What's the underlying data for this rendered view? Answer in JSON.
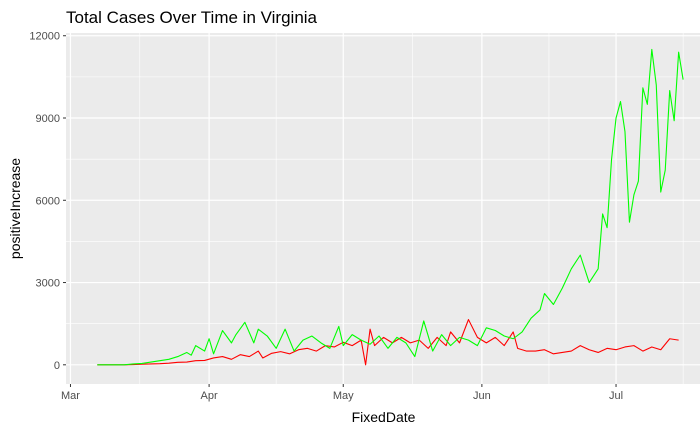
{
  "chart_data": {
    "type": "line",
    "title": "Total Cases Over Time in Virginia",
    "xlabel": "FixedDate",
    "ylabel": "positiveIncrease",
    "xlim": [
      "2020-02-29",
      "2020-07-20"
    ],
    "ylim": [
      -700,
      12100
    ],
    "x_ticks": [
      {
        "date": "2020-03-01",
        "label": "Mar"
      },
      {
        "date": "2020-04-01",
        "label": "Apr"
      },
      {
        "date": "2020-05-01",
        "label": "May"
      },
      {
        "date": "2020-06-01",
        "label": "Jun"
      },
      {
        "date": "2020-07-01",
        "label": "Jul"
      }
    ],
    "y_ticks": [
      {
        "value": 0,
        "label": "0"
      },
      {
        "value": 3000,
        "label": "3000"
      },
      {
        "value": 6000,
        "label": "6000"
      },
      {
        "value": 9000,
        "label": "9000"
      },
      {
        "value": 12000,
        "label": "12000"
      }
    ],
    "grid": true,
    "legend": "none",
    "colors": {
      "panel": "#ebebeb",
      "grid": "#ffffff",
      "red_series": "#ff0000",
      "green_series": "#00ff00"
    },
    "series": [
      {
        "color": "#ff0000",
        "points": [
          [
            "2020-03-07",
            0
          ],
          [
            "2020-03-10",
            0
          ],
          [
            "2020-03-13",
            0
          ],
          [
            "2020-03-15",
            10
          ],
          [
            "2020-03-17",
            20
          ],
          [
            "2020-03-19",
            30
          ],
          [
            "2020-03-21",
            40
          ],
          [
            "2020-03-23",
            60
          ],
          [
            "2020-03-25",
            90
          ],
          [
            "2020-03-27",
            100
          ],
          [
            "2020-03-29",
            150
          ],
          [
            "2020-03-31",
            160
          ],
          [
            "2020-04-02",
            250
          ],
          [
            "2020-04-04",
            300
          ],
          [
            "2020-04-06",
            200
          ],
          [
            "2020-04-08",
            370
          ],
          [
            "2020-04-10",
            300
          ],
          [
            "2020-04-12",
            500
          ],
          [
            "2020-04-13",
            250
          ],
          [
            "2020-04-15",
            420
          ],
          [
            "2020-04-17",
            480
          ],
          [
            "2020-04-19",
            400
          ],
          [
            "2020-04-21",
            550
          ],
          [
            "2020-04-23",
            600
          ],
          [
            "2020-04-25",
            500
          ],
          [
            "2020-04-27",
            700
          ],
          [
            "2020-04-29",
            650
          ],
          [
            "2020-05-01",
            820
          ],
          [
            "2020-05-03",
            700
          ],
          [
            "2020-05-05",
            900
          ],
          [
            "2020-05-06",
            0
          ],
          [
            "2020-05-07",
            1300
          ],
          [
            "2020-05-08",
            700
          ],
          [
            "2020-05-10",
            1000
          ],
          [
            "2020-05-12",
            800
          ],
          [
            "2020-05-14",
            1000
          ],
          [
            "2020-05-16",
            800
          ],
          [
            "2020-05-18",
            900
          ],
          [
            "2020-05-20",
            600
          ],
          [
            "2020-05-22",
            1000
          ],
          [
            "2020-05-24",
            700
          ],
          [
            "2020-05-25",
            1200
          ],
          [
            "2020-05-27",
            800
          ],
          [
            "2020-05-29",
            1650
          ],
          [
            "2020-05-31",
            1000
          ],
          [
            "2020-06-02",
            800
          ],
          [
            "2020-06-04",
            1000
          ],
          [
            "2020-06-06",
            700
          ],
          [
            "2020-06-08",
            1200
          ],
          [
            "2020-06-09",
            600
          ],
          [
            "2020-06-11",
            500
          ],
          [
            "2020-06-13",
            500
          ],
          [
            "2020-06-15",
            550
          ],
          [
            "2020-06-17",
            400
          ],
          [
            "2020-06-19",
            450
          ],
          [
            "2020-06-21",
            500
          ],
          [
            "2020-06-23",
            700
          ],
          [
            "2020-06-25",
            550
          ],
          [
            "2020-06-27",
            450
          ],
          [
            "2020-06-29",
            600
          ],
          [
            "2020-07-01",
            550
          ],
          [
            "2020-07-03",
            650
          ],
          [
            "2020-07-05",
            700
          ],
          [
            "2020-07-07",
            500
          ],
          [
            "2020-07-09",
            650
          ],
          [
            "2020-07-11",
            550
          ],
          [
            "2020-07-13",
            950
          ],
          [
            "2020-07-15",
            900
          ]
        ]
      },
      {
        "color": "#00ff00",
        "points": [
          [
            "2020-03-07",
            0
          ],
          [
            "2020-03-10",
            0
          ],
          [
            "2020-03-13",
            0
          ],
          [
            "2020-03-15",
            30
          ],
          [
            "2020-03-17",
            50
          ],
          [
            "2020-03-19",
            100
          ],
          [
            "2020-03-21",
            150
          ],
          [
            "2020-03-23",
            200
          ],
          [
            "2020-03-25",
            300
          ],
          [
            "2020-03-27",
            450
          ],
          [
            "2020-03-28",
            350
          ],
          [
            "2020-03-29",
            700
          ],
          [
            "2020-03-31",
            500
          ],
          [
            "2020-04-01",
            950
          ],
          [
            "2020-04-02",
            400
          ],
          [
            "2020-04-04",
            1250
          ],
          [
            "2020-04-06",
            800
          ],
          [
            "2020-04-07",
            1100
          ],
          [
            "2020-04-09",
            1550
          ],
          [
            "2020-04-11",
            800
          ],
          [
            "2020-04-12",
            1300
          ],
          [
            "2020-04-14",
            1050
          ],
          [
            "2020-04-16",
            600
          ],
          [
            "2020-04-18",
            1300
          ],
          [
            "2020-04-20",
            500
          ],
          [
            "2020-04-22",
            900
          ],
          [
            "2020-04-24",
            1050
          ],
          [
            "2020-04-26",
            800
          ],
          [
            "2020-04-28",
            600
          ],
          [
            "2020-04-30",
            1400
          ],
          [
            "2020-05-01",
            700
          ],
          [
            "2020-05-03",
            1100
          ],
          [
            "2020-05-05",
            900
          ],
          [
            "2020-05-07",
            750
          ],
          [
            "2020-05-09",
            1050
          ],
          [
            "2020-05-11",
            600
          ],
          [
            "2020-05-13",
            1000
          ],
          [
            "2020-05-15",
            800
          ],
          [
            "2020-05-17",
            300
          ],
          [
            "2020-05-19",
            1600
          ],
          [
            "2020-05-21",
            500
          ],
          [
            "2020-05-23",
            1100
          ],
          [
            "2020-05-25",
            700
          ],
          [
            "2020-05-27",
            1000
          ],
          [
            "2020-05-29",
            900
          ],
          [
            "2020-05-31",
            700
          ],
          [
            "2020-06-02",
            1350
          ],
          [
            "2020-06-04",
            1250
          ],
          [
            "2020-06-06",
            1050
          ],
          [
            "2020-06-08",
            950
          ],
          [
            "2020-06-10",
            1200
          ],
          [
            "2020-06-12",
            1700
          ],
          [
            "2020-06-14",
            2000
          ],
          [
            "2020-06-15",
            2600
          ],
          [
            "2020-06-17",
            2200
          ],
          [
            "2020-06-19",
            2800
          ],
          [
            "2020-06-21",
            3500
          ],
          [
            "2020-06-23",
            4000
          ],
          [
            "2020-06-25",
            3000
          ],
          [
            "2020-06-27",
            3500
          ],
          [
            "2020-06-28",
            5500
          ],
          [
            "2020-06-29",
            5000
          ],
          [
            "2020-06-30",
            7500
          ],
          [
            "2020-07-01",
            9000
          ],
          [
            "2020-07-02",
            9600
          ],
          [
            "2020-07-03",
            8500
          ],
          [
            "2020-07-04",
            5200
          ],
          [
            "2020-07-05",
            6200
          ],
          [
            "2020-07-06",
            6700
          ],
          [
            "2020-07-07",
            10100
          ],
          [
            "2020-07-08",
            9500
          ],
          [
            "2020-07-09",
            11500
          ],
          [
            "2020-07-10",
            10200
          ],
          [
            "2020-07-11",
            6300
          ],
          [
            "2020-07-12",
            7100
          ],
          [
            "2020-07-13",
            10000
          ],
          [
            "2020-07-14",
            8900
          ],
          [
            "2020-07-15",
            11400
          ],
          [
            "2020-07-16",
            10400
          ]
        ]
      }
    ]
  }
}
